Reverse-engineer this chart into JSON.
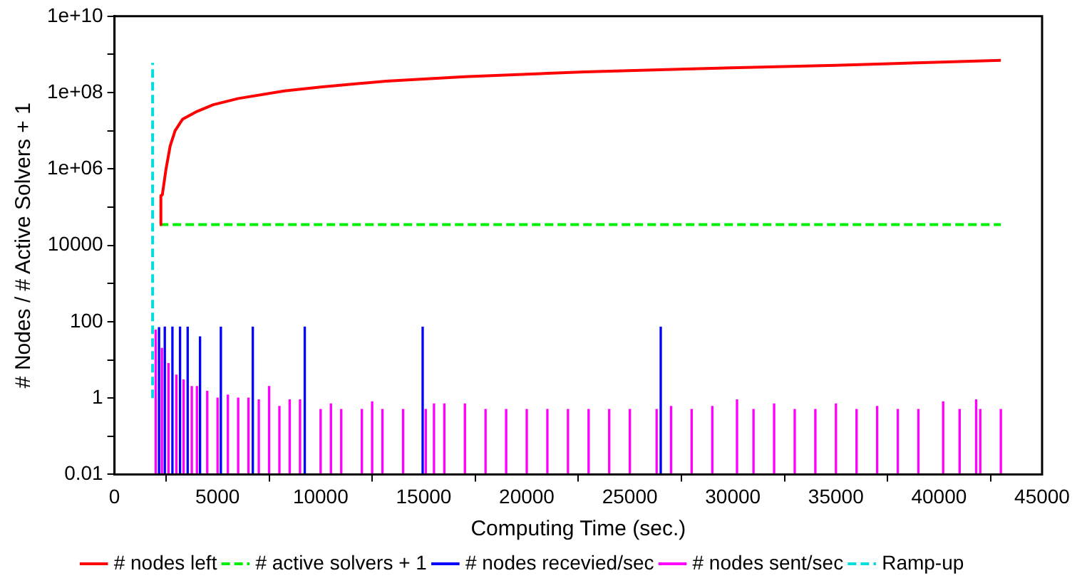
{
  "chart_data": {
    "type": "line",
    "xlabel": "Computing Time (sec.)",
    "ylabel": "# Nodes / # Active Solvers + 1",
    "xlim": [
      0,
      45000
    ],
    "xticks": [
      0,
      5000,
      10000,
      15000,
      20000,
      25000,
      30000,
      35000,
      40000,
      45000
    ],
    "ylim": [
      0.01,
      10000000000.0
    ],
    "log": "y",
    "yticks": [
      {
        "value": 0.01,
        "label": "0.01"
      },
      {
        "value": 0.1,
        "label": null
      },
      {
        "value": 1,
        "label": "1"
      },
      {
        "value": 10,
        "label": null
      },
      {
        "value": 100,
        "label": "100"
      },
      {
        "value": 1000,
        "label": null
      },
      {
        "value": 10000,
        "label": "10000"
      },
      {
        "value": 100000,
        "label": null
      },
      {
        "value": 1000000,
        "label": "1e+06"
      },
      {
        "value": 10000000,
        "label": null
      },
      {
        "value": 100000000,
        "label": "1e+08"
      },
      {
        "value": 1000000000,
        "label": null
      },
      {
        "value": 10000000000,
        "label": "1e+10"
      }
    ],
    "grid": false,
    "legend": "bottom",
    "marker": "none",
    "series": [
      {
        "name": "# nodes left",
        "color": "#ff0000",
        "line_style": "solid",
        "x": [
          2200,
          2250,
          2320,
          2500,
          2700,
          2940,
          3300,
          4000,
          4790,
          6000,
          8240,
          10000,
          13180,
          17000,
          22800,
          28000,
          35000,
          43000
        ],
        "values": [
          35000,
          200000,
          210000,
          1000000,
          4000000,
          10000000,
          20000000,
          32000000,
          48000000,
          70000000,
          110000000,
          140000000,
          200000000,
          260000000,
          350000000,
          420000000,
          520000000,
          700000000
        ]
      },
      {
        "name": "# active solvers + 1",
        "color": "#00ee00",
        "line_style": "dashed",
        "x": [
          2200,
          43000
        ],
        "values": [
          35000,
          35000
        ]
      },
      {
        "name": "# nodes recevied/sec",
        "type": "bar",
        "color": "#0000ff",
        "x": [
          2160,
          2440,
          2810,
          3180,
          3550,
          4150,
          5160,
          6710,
          9230,
          14950,
          26500
        ],
        "values": [
          70,
          72,
          72,
          72,
          72,
          40,
          72,
          72,
          72,
          72,
          72
        ]
      },
      {
        "name": "# nodes sent/sec",
        "type": "bar",
        "color": "#ff00ff",
        "x": [
          2000,
          2300,
          2620,
          3000,
          3350,
          3750,
          4000,
          4500,
          5000,
          5500,
          6000,
          6500,
          7000,
          7500,
          8000,
          8500,
          9000,
          10000,
          10500,
          11000,
          12000,
          12500,
          13000,
          14000,
          15100,
          15500,
          16000,
          17000,
          18000,
          19000,
          20000,
          21000,
          22000,
          23000,
          24000,
          25000,
          26300,
          27000,
          28000,
          29000,
          30200,
          31000,
          32000,
          33000,
          34000,
          35000,
          36000,
          37000,
          38000,
          39000,
          40200,
          41000,
          41800,
          42000,
          43000
        ],
        "values": [
          60,
          20,
          8,
          4,
          3,
          2,
          2,
          1.5,
          1,
          1.2,
          1,
          1,
          0.9,
          2,
          0.6,
          0.9,
          0.9,
          0.5,
          0.7,
          0.5,
          0.5,
          0.8,
          0.5,
          0.5,
          0.5,
          0.7,
          0.7,
          0.7,
          0.5,
          0.5,
          0.5,
          0.5,
          0.5,
          0.5,
          0.5,
          0.5,
          0.5,
          0.6,
          0.5,
          0.6,
          0.9,
          0.5,
          0.7,
          0.5,
          0.5,
          0.7,
          0.5,
          0.6,
          0.5,
          0.5,
          0.8,
          0.5,
          0.9,
          0.5,
          0.5
        ]
      },
      {
        "name": "Ramp-up",
        "color": "#00dddd",
        "line_style": "dashed",
        "x": [
          1850,
          1850
        ],
        "values": [
          1,
          600000000
        ]
      }
    ]
  }
}
